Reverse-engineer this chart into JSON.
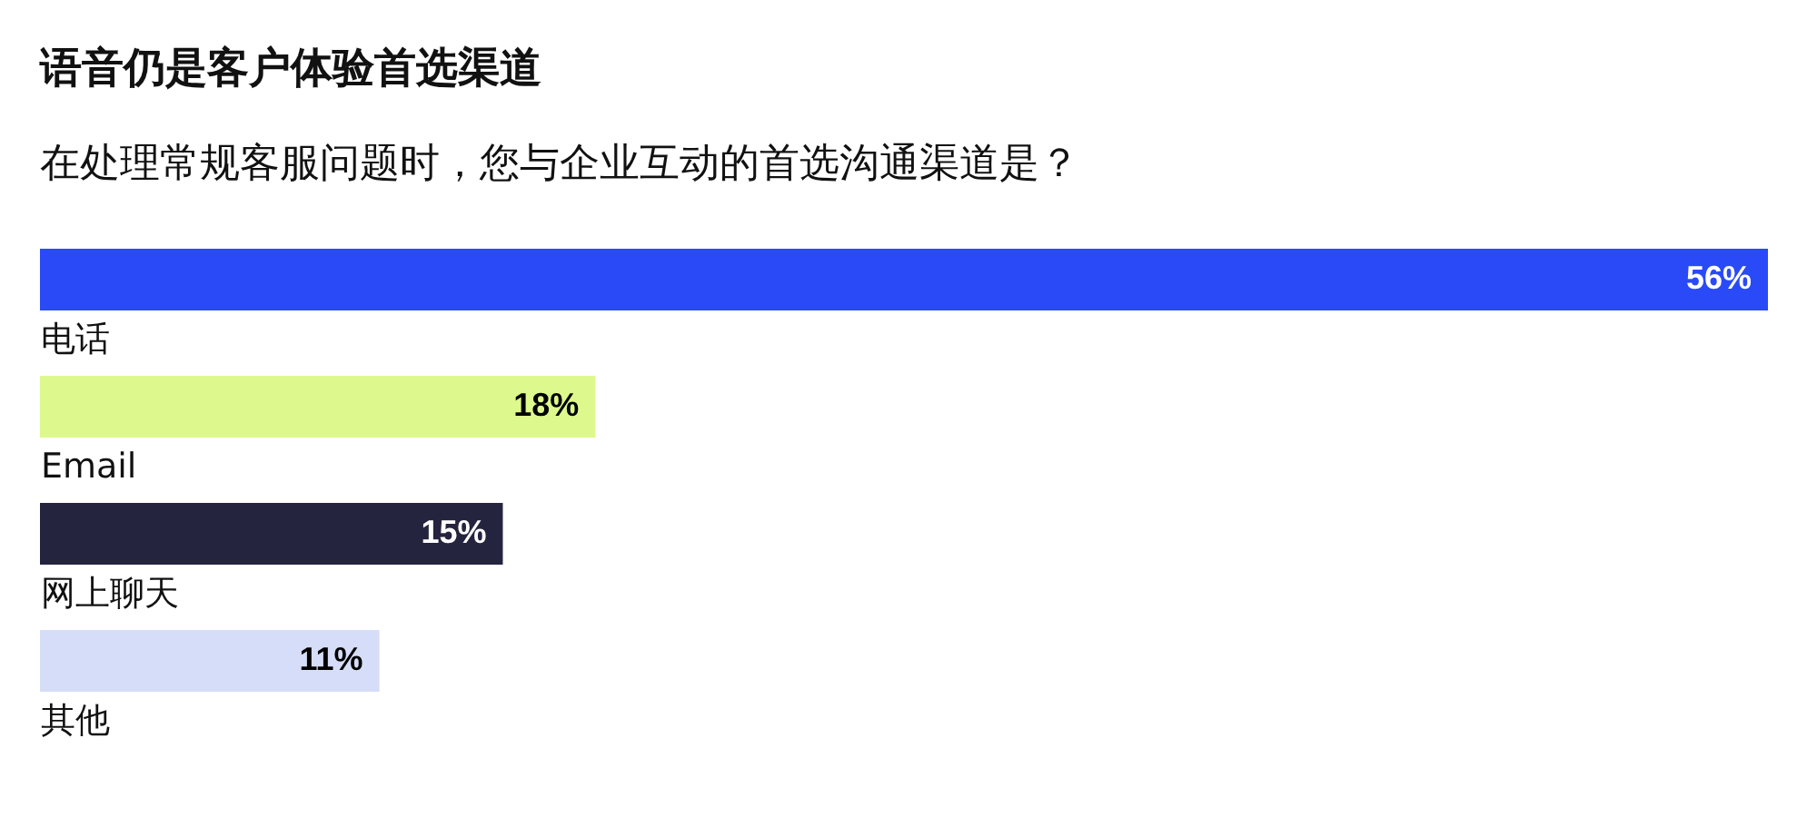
{
  "chart_data": {
    "type": "bar",
    "orientation": "horizontal",
    "title": "语音仍是客户体验首选渠道",
    "subtitle": "在处理常规客服问题时，您与企业互动的首选沟通渠道是？",
    "categories": [
      "电话",
      "Email",
      "网上聊天",
      "其他"
    ],
    "values": [
      56,
      18,
      15,
      11
    ],
    "colors": [
      "#2a4af7",
      "#ddf98d",
      "#24243f",
      "#d6ddf8"
    ],
    "value_labels": [
      "56%",
      "18%",
      "15%",
      "11%"
    ],
    "xlim": [
      0,
      56
    ],
    "tick_labels": "y"
  }
}
